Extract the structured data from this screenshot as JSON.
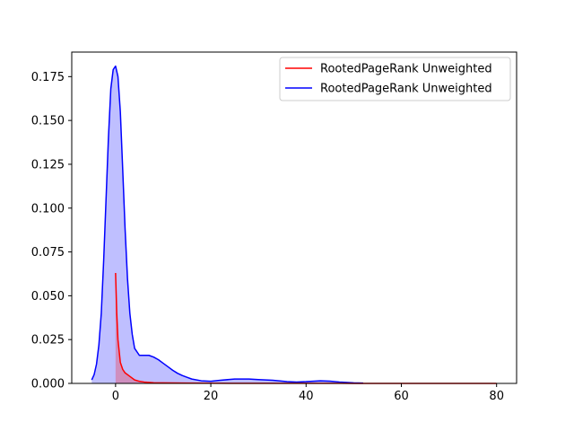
{
  "chart_data": {
    "type": "area",
    "title": "",
    "xlabel": "",
    "ylabel": "",
    "xlim": [
      -9.2,
      84.2
    ],
    "ylim": [
      0,
      0.189
    ],
    "xticks": [
      0,
      20,
      40,
      60,
      80
    ],
    "yticks": [
      0.0,
      0.025,
      0.05,
      0.075,
      0.1,
      0.125,
      0.15,
      0.175
    ],
    "xtick_labels": [
      "0",
      "20",
      "40",
      "60",
      "80"
    ],
    "ytick_labels": [
      "0.000",
      "0.025",
      "0.050",
      "0.075",
      "0.100",
      "0.125",
      "0.150",
      "0.175"
    ],
    "grid": false,
    "legend_position": "upper right",
    "series": [
      {
        "name": "RootedPageRank Unweighted",
        "color": "#ff0000",
        "fill_color": "#ff0000",
        "fill_opacity": 0.25,
        "x": [
          0,
          0.25,
          0.5,
          1,
          1.5,
          2,
          3,
          4,
          5,
          6,
          8,
          10,
          15,
          20,
          30,
          40,
          50,
          60,
          70,
          80
        ],
        "y": [
          0.063,
          0.04,
          0.025,
          0.012,
          0.008,
          0.006,
          0.004,
          0.002,
          0.0012,
          0.0008,
          0.0004,
          0.0003,
          0.0002,
          0.0001,
          6e-05,
          4e-05,
          3e-05,
          2e-05,
          1e-05,
          1e-05
        ]
      },
      {
        "name": "RootedPageRank Unweighted",
        "color": "#0000ff",
        "fill_color": "#0000ff",
        "fill_opacity": 0.25,
        "x": [
          -5,
          -4.5,
          -4,
          -3.5,
          -3,
          -2.5,
          -2,
          -1.5,
          -1,
          -0.5,
          0,
          0.5,
          1,
          1.5,
          2,
          2.5,
          3,
          3.5,
          4,
          5,
          6,
          7,
          8,
          9,
          10,
          11,
          12,
          13,
          14,
          15,
          16,
          18,
          20,
          22,
          25,
          28,
          30,
          33,
          36,
          38,
          40,
          43,
          45,
          47,
          50,
          52
        ],
        "y": [
          0.002,
          0.005,
          0.011,
          0.022,
          0.04,
          0.07,
          0.105,
          0.14,
          0.168,
          0.179,
          0.181,
          0.175,
          0.155,
          0.122,
          0.088,
          0.06,
          0.04,
          0.028,
          0.02,
          0.016,
          0.016,
          0.016,
          0.015,
          0.0135,
          0.0115,
          0.0095,
          0.0075,
          0.0058,
          0.0045,
          0.0035,
          0.0025,
          0.0015,
          0.0012,
          0.0018,
          0.0025,
          0.0025,
          0.0022,
          0.0018,
          0.001,
          0.0008,
          0.001,
          0.0015,
          0.0013,
          0.0008,
          0.0003,
          0.0002
        ]
      }
    ]
  }
}
